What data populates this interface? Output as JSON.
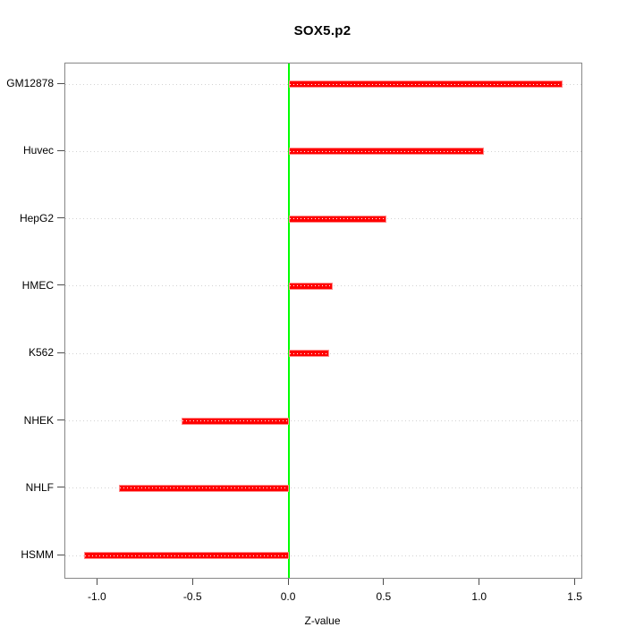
{
  "chart_data": {
    "type": "bar",
    "orientation": "horizontal",
    "title": "SOX5.p2",
    "xlabel": "Z-value",
    "ylabel": "",
    "categories": [
      "GM12878",
      "Huvec",
      "HepG2",
      "HMEC",
      "K562",
      "NHEK",
      "NHLF",
      "HSMM"
    ],
    "values": [
      1.43,
      1.02,
      0.51,
      0.23,
      0.21,
      -0.56,
      -0.89,
      -1.07
    ],
    "xlim": [
      -1.17,
      1.53
    ],
    "xticks": [
      -1.0,
      -0.5,
      0.0,
      0.5,
      1.0,
      1.5
    ],
    "xtick_labels": [
      "-1.0",
      "-0.5",
      "0.0",
      "0.5",
      "1.0",
      "1.5"
    ],
    "baseline_value": 0.0,
    "grid": "horizontal dotted line at each category",
    "legend": "none",
    "colors": {
      "bar": "#ff0000",
      "bar_border": "#ff8a8a",
      "bar_dots": "#ffffff",
      "zero_line": "#00ff00",
      "grid": "#d2d2d2",
      "box": "#878787",
      "tick": "#4d4d4d",
      "text": "#000000",
      "background": "#ffffff"
    }
  }
}
